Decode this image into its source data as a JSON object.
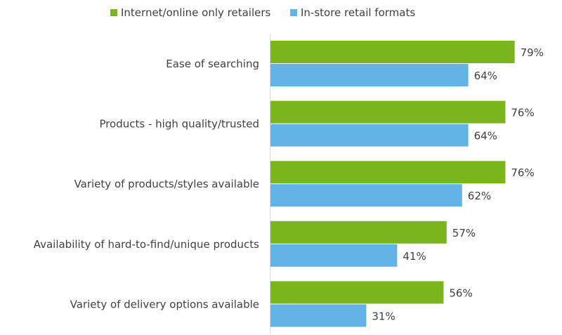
{
  "chart_data": {
    "type": "bar",
    "orientation": "horizontal",
    "categories": [
      "Ease of searching",
      "Products - high quality/trusted",
      "Variety of products/styles available",
      "Availability of hard-to-find/unique products",
      "Variety of delivery options available"
    ],
    "series": [
      {
        "name": "Internet/online only retailers",
        "values": [
          79,
          76,
          76,
          57,
          56
        ],
        "color": "#7ab51d"
      },
      {
        "name": "In-store retail formats",
        "values": [
          64,
          64,
          62,
          41,
          31
        ],
        "color": "#63b3e6"
      }
    ],
    "value_labels": {
      "0": [
        "79%",
        "76%",
        "76%",
        "57%",
        "56%"
      ],
      "1": [
        "64%",
        "64%",
        "62%",
        "41%",
        "31%"
      ]
    },
    "xlim": [
      0,
      100
    ],
    "grid": false,
    "legend_position": "top"
  }
}
